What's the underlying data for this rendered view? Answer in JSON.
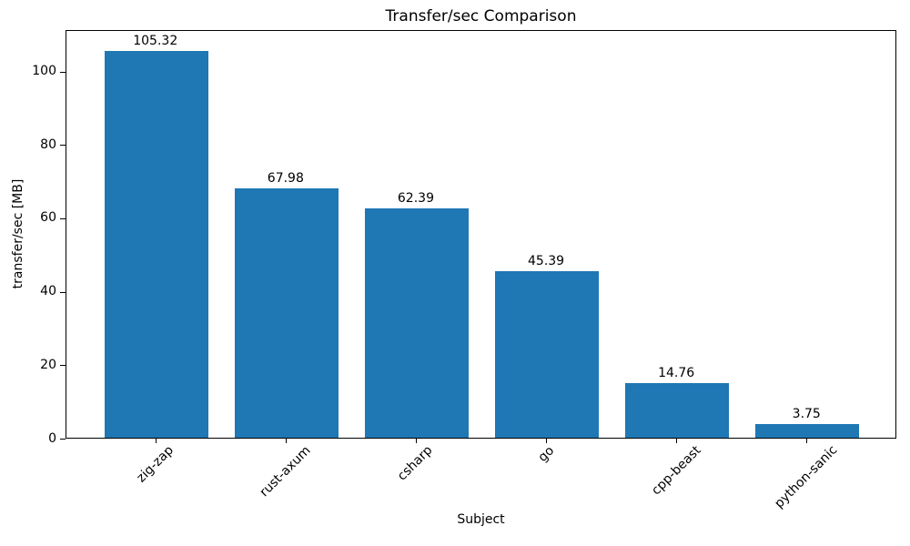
{
  "chart_data": {
    "type": "bar",
    "title": "Transfer/sec Comparison",
    "xlabel": "Subject",
    "ylabel": "transfer/sec [MB]",
    "categories": [
      "zig-zap",
      "rust-axum",
      "csharp",
      "go",
      "cpp-beast",
      "python-sanic"
    ],
    "values": [
      105.32,
      67.98,
      62.39,
      45.39,
      14.76,
      3.75
    ],
    "bar_labels": [
      "105.32",
      "67.98",
      "62.39",
      "45.39",
      "14.76",
      "3.75"
    ],
    "yticks": [
      0,
      20,
      40,
      60,
      80,
      100
    ],
    "ylim": [
      0,
      111.3
    ],
    "bar_color": "#1f77b4",
    "text_color": "#000000",
    "grid": false,
    "x_tick_rotation_deg": 45,
    "value_labels_shown": true
  }
}
